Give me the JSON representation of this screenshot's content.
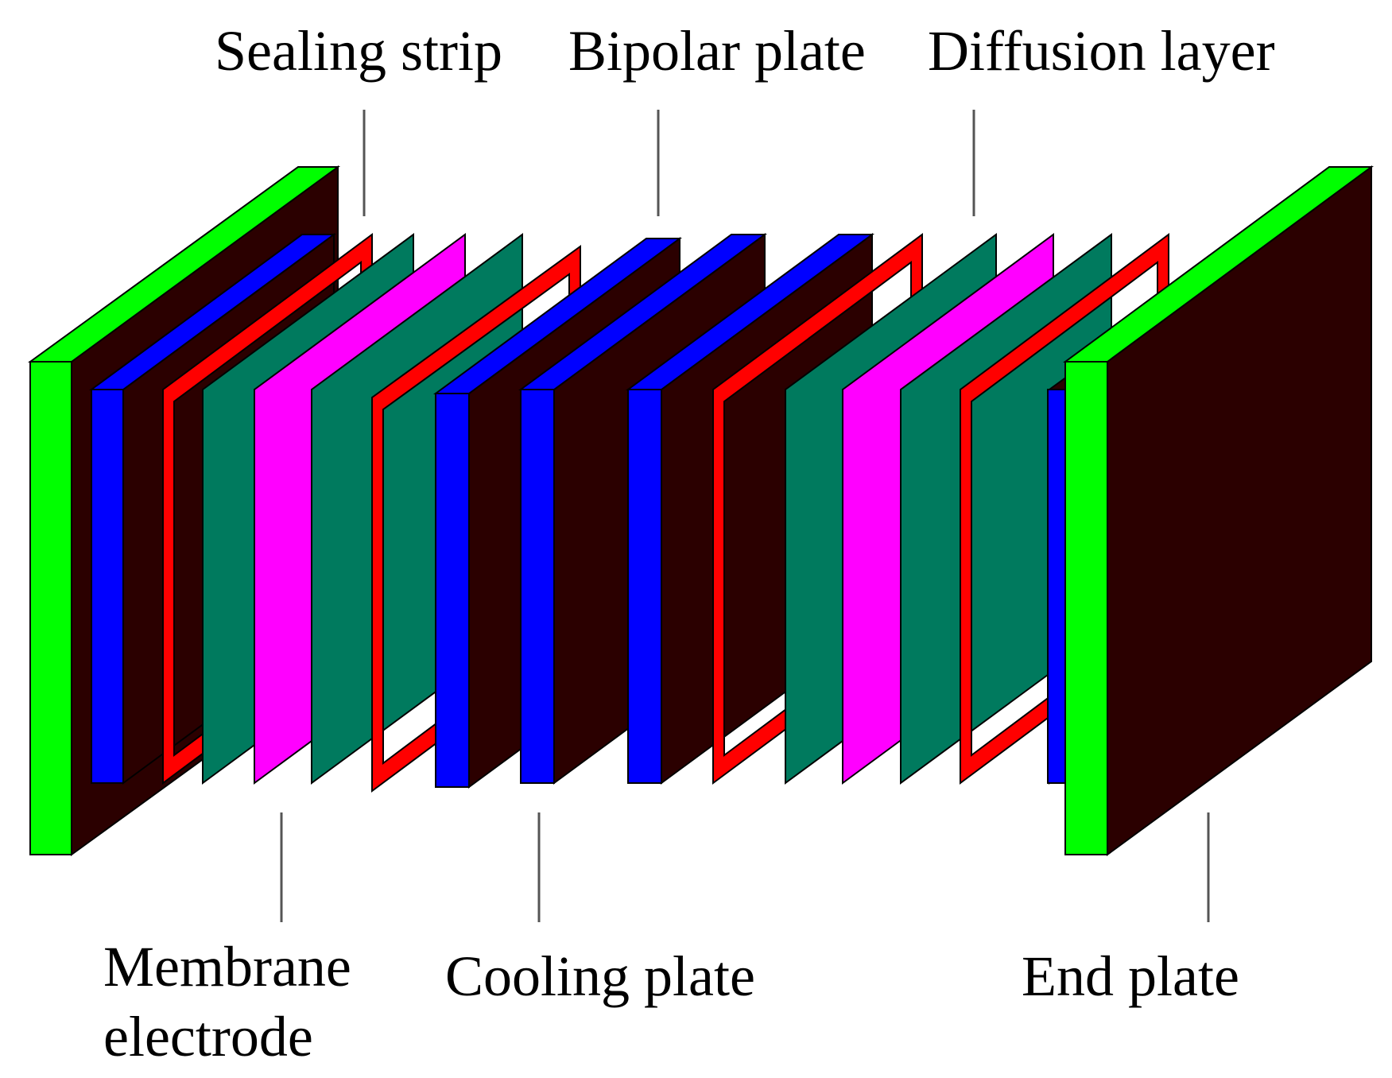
{
  "labels": {
    "sealing_strip": "Sealing strip",
    "bipolar_plate": "Bipolar plate",
    "diffusion_layer": "Diffusion layer",
    "membrane_electrode_line1": "Membrane",
    "membrane_electrode_line2": "electrode",
    "cooling_plate": "Cooling plate",
    "end_plate": "End plate"
  },
  "colors": {
    "end_plate_edge": "#00ff00",
    "plate_face": "#2b0000",
    "bipolar_edge": "#0000ff",
    "sealing_strip": "#ff0000",
    "diffusion_layer": "#007a5e",
    "membrane": "#ff00ff",
    "leader_line": "#555555"
  }
}
